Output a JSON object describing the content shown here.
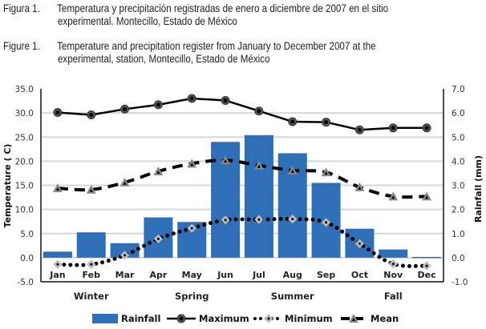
{
  "captions": [
    {
      "label": "Figura 1.",
      "line1": "Temperatura y precipitación registradas de enero a diciembre de 2007 en el sitio",
      "line2": "experimental. Montecillo, Estado de México"
    },
    {
      "label": "Figure 1.",
      "line1": "Temperature and precipitation register from January to December 2007 at the",
      "line2": "experimental, station, Montecillo, Estado de México"
    }
  ],
  "chart_data": {
    "type": "bar",
    "title": "",
    "categories": [
      "Jan",
      "Feb",
      "Mar",
      "Apr",
      "May",
      "Jun",
      "Jul",
      "Aug",
      "Sep",
      "Oct",
      "Nov",
      "Dec"
    ],
    "seasons": [
      {
        "label": "Winter",
        "between": [
          "Jan",
          "Mar"
        ]
      },
      {
        "label": "Spring",
        "between": [
          "Apr",
          "Jun"
        ]
      },
      {
        "label": "Summer",
        "between": [
          "Jul",
          "Sep"
        ]
      },
      {
        "label": "Fall",
        "between": [
          "Oct",
          "Dec"
        ]
      }
    ],
    "xlabel": "",
    "ylabel": "Temperature ( C)",
    "y2label": "Rainfall  (mm)",
    "ylim": [
      -5,
      35
    ],
    "y2lim": [
      -1,
      7
    ],
    "yticks": [
      "35.0",
      "30.0",
      "25.0",
      "20.0",
      "15.0",
      "10.0",
      "5.0",
      "0.0",
      "-5.0"
    ],
    "y2ticks": [
      "7.0",
      "6.0",
      "5.0",
      "4.0",
      "3.0",
      "2.0",
      "1.0",
      "0.0",
      "-1.0"
    ],
    "grid": true,
    "legend_position": "bottom",
    "series": [
      {
        "name": "Rainfall",
        "type": "bar",
        "axis": "right",
        "color": "#2e6fb7",
        "values": [
          0.25,
          1.05,
          0.6,
          1.67,
          1.48,
          4.8,
          5.08,
          4.33,
          3.1,
          1.2,
          0.34,
          0.03
        ]
      },
      {
        "name": "Maximum",
        "type": "line",
        "axis": "left",
        "style": "solid-circle",
        "color": "#000000",
        "values": [
          30.1,
          29.6,
          30.8,
          31.7,
          33.0,
          32.6,
          30.4,
          28.2,
          28.1,
          26.5,
          26.9,
          26.9
        ]
      },
      {
        "name": "Minimum",
        "type": "line",
        "axis": "left",
        "style": "dotted-diamond",
        "color": "#000000",
        "values": [
          -1.4,
          -1.4,
          0.5,
          3.9,
          6.1,
          7.8,
          7.9,
          8.0,
          7.3,
          2.9,
          -1.3,
          -1.7
        ]
      },
      {
        "name": "Mean",
        "type": "line",
        "axis": "left",
        "style": "dashed-triangle",
        "color": "#000000",
        "values": [
          14.4,
          14.1,
          15.6,
          17.9,
          19.5,
          20.2,
          19.1,
          18.1,
          17.7,
          14.6,
          12.7,
          12.7
        ]
      }
    ]
  }
}
